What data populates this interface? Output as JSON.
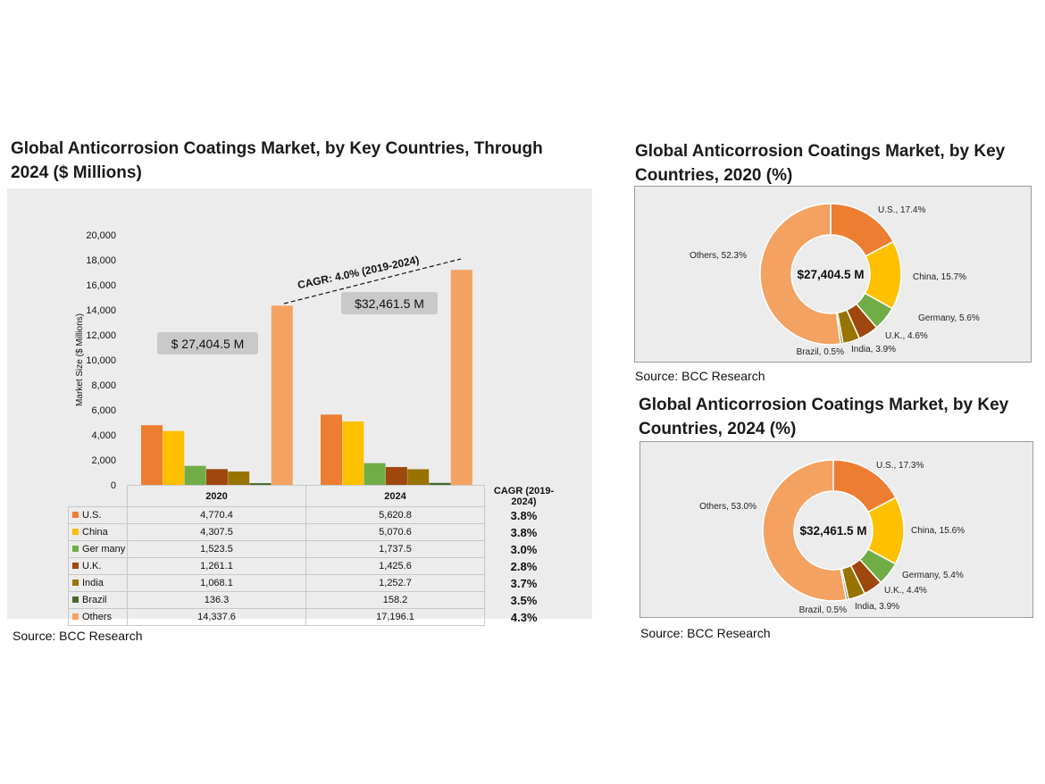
{
  "left_title": "Global Anticorrosion Coatings Market, by Key Countries, Through 2024 ($ Millions)",
  "pie1_title": "Global Anticorrosion Coatings Market, by Key Countries, 2020 (%)",
  "pie2_title": "Global Anticorrosion Coatings Market, by Key Countries, 2024 (%)",
  "source": "Source: BCC Research",
  "colors": {
    "U.S.": "#ed7d31",
    "China": "#ffc000",
    "Germany": "#70ad47",
    "U.K.": "#9e480e",
    "India": "#997300",
    "Brazil": "#43682b",
    "Others": "#f4a261"
  },
  "chart_data": [
    {
      "type": "bar",
      "title": "Global Anticorrosion Coatings Market, by Key Countries, Through 2024 ($ Millions)",
      "ylabel": "Market Size ($ Millions)",
      "ylim": [
        0,
        20000
      ],
      "yticks": [
        "0",
        "2,000",
        "4,000",
        "6,000",
        "8,000",
        "10,000",
        "12,000",
        "14,000",
        "16,000",
        "18,000",
        "20,000"
      ],
      "categories": [
        "2020",
        "2024"
      ],
      "series": [
        {
          "name": "U.S.",
          "values": [
            4770.4,
            5620.8
          ],
          "labels": [
            "4,770.4",
            "5,620.8"
          ],
          "cagr": "3.8%"
        },
        {
          "name": "China",
          "values": [
            4307.5,
            5070.6
          ],
          "labels": [
            "4,307.5",
            "5,070.6"
          ],
          "cagr": "3.8%"
        },
        {
          "name": "Ger many",
          "values": [
            1523.5,
            1737.5
          ],
          "labels": [
            "1,523.5",
            "1,737.5"
          ],
          "cagr": "3.0%"
        },
        {
          "name": "U.K.",
          "values": [
            1261.1,
            1425.6
          ],
          "labels": [
            "1,261.1",
            "1,425.6"
          ],
          "cagr": "2.8%"
        },
        {
          "name": "India",
          "values": [
            1068.1,
            1252.7
          ],
          "labels": [
            "1,068.1",
            "1,252.7"
          ],
          "cagr": "3.7%"
        },
        {
          "name": "Brazil",
          "values": [
            136.3,
            158.2
          ],
          "labels": [
            "136.3",
            "158.2"
          ],
          "cagr": "3.5%"
        },
        {
          "name": "Others",
          "values": [
            14337.6,
            17196.1
          ],
          "labels": [
            "14,337.6",
            "17,196.1"
          ],
          "cagr": "4.3%"
        }
      ],
      "cagr_header": "CAGR (2019-2024)",
      "totals": [
        "$ 27,404.5 M",
        "$32,461.5 M"
      ],
      "cagr_annotation": "CAGR: 4.0% (2019-2024)",
      "legend": "data-table-below"
    },
    {
      "type": "pie",
      "title": "Global Anticorrosion Coatings Market, by Key Countries, 2020 (%)",
      "center_label": "$27,404.5 M",
      "slices": [
        {
          "name": "U.S.",
          "value": 17.4,
          "label": "U.S., 17.4%"
        },
        {
          "name": "China",
          "value": 15.7,
          "label": "China, 15.7%"
        },
        {
          "name": "Germany",
          "value": 5.6,
          "label": "Germany, 5.6%"
        },
        {
          "name": "U.K.",
          "value": 4.6,
          "label": "U.K., 4.6%"
        },
        {
          "name": "India",
          "value": 3.9,
          "label": "India, 3.9%"
        },
        {
          "name": "Brazil",
          "value": 0.5,
          "label": "Brazil, 0.5%"
        },
        {
          "name": "Others",
          "value": 52.3,
          "label": "Others, 52.3%"
        }
      ]
    },
    {
      "type": "pie",
      "title": "Global Anticorrosion Coatings Market, by Key Countries, 2024 (%)",
      "center_label": "$32,461.5 M",
      "slices": [
        {
          "name": "U.S.",
          "value": 17.3,
          "label": "U.S., 17.3%"
        },
        {
          "name": "China",
          "value": 15.6,
          "label": "China, 15.6%"
        },
        {
          "name": "Germany",
          "value": 5.4,
          "label": "Germany, 5.4%"
        },
        {
          "name": "U.K.",
          "value": 4.4,
          "label": "U.K., 4.4%"
        },
        {
          "name": "India",
          "value": 3.9,
          "label": "India, 3.9%"
        },
        {
          "name": "Brazil",
          "value": 0.5,
          "label": "Brazil, 0.5%"
        },
        {
          "name": "Others",
          "value": 53.0,
          "label": "Others, 53.0%"
        }
      ]
    }
  ]
}
